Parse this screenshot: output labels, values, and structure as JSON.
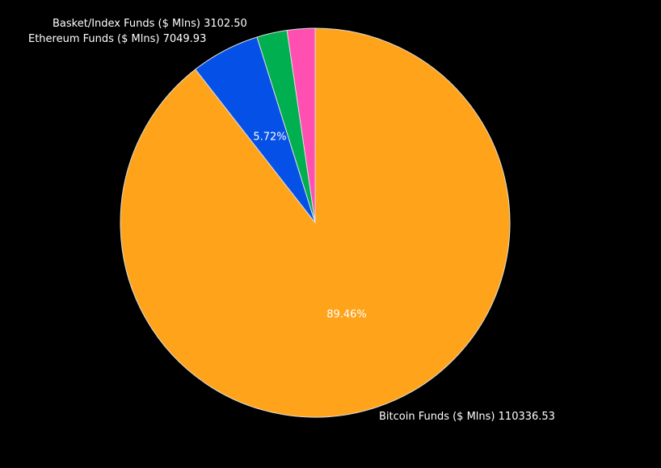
{
  "chart_data": {
    "type": "pie",
    "direction": "clockwise",
    "start_angle": "12 o'clock",
    "slices": [
      {
        "label": "Bitcoin Funds ($ Mlns)",
        "value": 110336.53,
        "value_text": "110336.53",
        "percent_text": "89.46%",
        "color": "#FFA31A"
      },
      {
        "label": "Ethereum Funds ($ Mlns)",
        "value": 7049.93,
        "value_text": "7049.93",
        "percent_text": "5.72%",
        "color": "#0550E6"
      },
      {
        "label": "Basket/Index Funds ($ Mlns)",
        "value": 3102.5,
        "value_text": "3102.50",
        "percent_text": "",
        "color": "#00AF50"
      },
      {
        "label": "",
        "value": 2848,
        "value_text": "",
        "percent_text": "",
        "color": "#FF4FB0"
      }
    ],
    "background": "#000000",
    "slice_border": "#DDDDDD"
  }
}
